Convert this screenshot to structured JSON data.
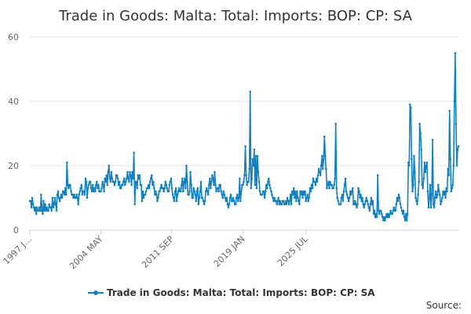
{
  "chart_data": {
    "type": "line",
    "title": "Trade in Goods: Malta: Total: Imports: BOP: CP: SA",
    "xlabel": "",
    "ylabel": "",
    "ylim": [
      0,
      60
    ],
    "y_ticks": [
      "0",
      "20",
      "40",
      "60"
    ],
    "x_tick_labels": [
      "1997 J…",
      "2004 MAY",
      "2011 SEP",
      "2019 JAN",
      "2025 JUL"
    ],
    "grid": "horizontal",
    "legend_position": "bottom",
    "series_color": "#1380c0",
    "source_label": "Source:",
    "series": [
      {
        "name": "Trade in Goods: Malta: Total: Imports: BOP: CP: SA",
        "x_range": [
          "1997 JAN",
          "2025 OCT"
        ],
        "frequency": "monthly",
        "values": [
          9,
          9,
          7,
          10,
          8,
          7,
          6,
          7,
          5,
          7,
          6,
          6,
          7,
          6,
          11,
          6,
          5,
          9,
          6,
          8,
          6,
          7,
          6,
          6,
          8,
          7,
          7,
          6,
          10,
          7,
          8,
          10,
          8,
          6,
          11,
          12,
          10,
          9,
          10,
          11,
          10,
          12,
          12,
          11,
          13,
          11,
          21,
          14,
          13,
          14,
          14,
          12,
          11,
          11,
          10,
          11,
          10,
          10,
          11,
          10,
          8,
          11,
          12,
          13,
          14,
          11,
          12,
          12,
          11,
          16,
          15,
          10,
          13,
          14,
          15,
          15,
          13,
          12,
          14,
          12,
          13,
          12,
          14,
          15,
          13,
          14,
          12,
          12,
          12,
          13,
          15,
          14,
          12,
          16,
          15,
          17,
          14,
          18,
          20,
          16,
          15,
          18,
          16,
          15,
          15,
          14,
          15,
          17,
          17,
          16,
          14,
          15,
          13,
          13,
          14,
          14,
          15,
          16,
          14,
          15,
          16,
          18,
          16,
          15,
          18,
          17,
          14,
          18,
          16,
          24,
          8,
          15,
          15,
          13,
          17,
          16,
          17,
          14,
          14,
          9,
          12,
          10,
          11,
          11,
          12,
          13,
          13,
          14,
          13,
          15,
          16,
          17,
          14,
          15,
          13,
          11,
          12,
          11,
          9,
          10,
          12,
          12,
          13,
          14,
          13,
          13,
          12,
          13,
          15,
          14,
          13,
          12,
          12,
          14,
          15,
          16,
          13,
          11,
          10,
          9,
          12,
          13,
          9,
          11,
          12,
          13,
          12,
          12,
          14,
          16,
          12,
          15,
          16,
          13,
          20,
          15,
          11,
          11,
          12,
          18,
          14,
          10,
          10,
          13,
          12,
          11,
          9,
          12,
          13,
          8,
          10,
          12,
          15,
          10,
          10,
          9,
          8,
          9,
          12,
          13,
          12,
          11,
          14,
          16,
          13,
          15,
          17,
          16,
          14,
          18,
          14,
          12,
          13,
          13,
          12,
          14,
          14,
          12,
          11,
          10,
          12,
          11,
          10,
          9,
          10,
          8,
          7,
          8,
          10,
          11,
          9,
          9,
          10,
          9,
          8,
          8,
          10,
          11,
          9,
          10,
          16,
          9,
          12,
          14,
          14,
          15,
          17,
          26,
          17,
          14,
          15,
          15,
          19,
          43,
          13,
          16,
          22,
          20,
          25,
          14,
          23,
          13,
          23,
          18,
          15,
          12,
          11,
          11,
          11,
          12,
          12,
          10,
          12,
          14,
          13,
          15,
          16,
          14,
          13,
          12,
          11,
          10,
          9,
          10,
          9,
          9,
          8,
          9,
          10,
          8,
          9,
          8,
          8,
          9,
          9,
          8,
          8,
          9,
          8,
          10,
          9,
          8,
          9,
          11,
          8,
          12,
          11,
          13,
          10,
          12,
          9,
          12,
          10,
          9,
          8,
          12,
          11,
          12,
          10,
          12,
          11,
          12,
          9,
          10,
          11,
          9,
          10,
          13,
          12,
          14,
          13,
          16,
          15,
          15,
          14,
          16,
          15,
          17,
          19,
          18,
          17,
          20,
          23,
          19,
          22,
          29,
          23,
          19,
          13,
          14,
          15,
          13,
          15,
          14,
          14,
          13,
          13,
          14,
          16,
          33,
          13,
          10,
          9,
          8,
          8,
          8,
          10,
          11,
          9,
          12,
          14,
          16,
          12,
          11,
          10,
          9,
          10,
          12,
          11,
          12,
          13,
          8,
          8,
          9,
          8,
          7,
          8,
          13,
          12,
          10,
          11,
          9,
          10,
          8,
          7,
          8,
          9,
          10,
          9,
          8,
          7,
          6,
          8,
          10,
          8,
          9,
          5,
          6,
          4,
          5,
          4,
          17,
          6,
          5,
          6,
          6,
          5,
          4,
          3,
          4,
          3,
          4,
          5,
          4,
          5,
          4,
          5,
          6,
          5,
          5,
          6,
          7,
          6,
          6,
          8,
          10,
          9,
          11,
          10,
          8,
          7,
          6,
          5,
          6,
          4,
          3,
          5,
          3,
          5,
          21,
          20,
          39,
          38,
          22,
          12,
          14,
          23,
          18,
          10,
          9,
          8,
          11,
          15,
          33,
          30,
          25,
          14,
          13,
          16,
          21,
          18,
          20,
          21,
          12,
          7,
          10,
          14,
          7,
          11,
          28,
          8,
          7,
          10,
          12,
          10,
          11,
          14,
          12,
          11,
          8,
          9,
          10,
          12,
          11,
          12,
          10,
          13,
          12,
          19,
          17,
          37,
          22,
          12,
          13,
          14,
          20,
          40,
          55,
          33,
          20,
          25,
          26
        ]
      }
    ]
  }
}
